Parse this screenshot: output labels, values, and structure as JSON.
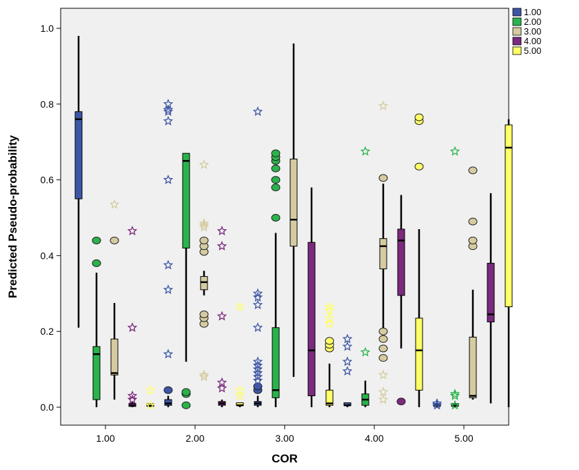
{
  "chart_data": {
    "type": "boxplot",
    "title": "",
    "xlabel": "COR",
    "ylabel": "Predicted Pseudo-probability",
    "categories": [
      "1.00",
      "2.00",
      "3.00",
      "4.00",
      "5.00"
    ],
    "y_ticks": [
      "0.0",
      "0.2",
      "0.4",
      "0.6",
      "0.8",
      "1.0"
    ],
    "ylim": [
      -0.05,
      1.05
    ],
    "grid": false,
    "legend_position": "top-right",
    "series": [
      {
        "name": "1.00",
        "color": "#3d56a6",
        "boxes": [
          {
            "min": 0.21,
            "q1": 0.55,
            "median": 0.76,
            "q3": 0.78,
            "max": 0.98,
            "outliers": [],
            "extremes": []
          },
          {
            "min": 0.0,
            "q1": 0.005,
            "median": 0.01,
            "q3": 0.02,
            "max": 0.03,
            "outliers": [
              0.045
            ],
            "extremes": [
              0.14,
              0.31,
              0.375,
              0.6,
              0.755,
              0.78,
              0.785,
              0.8
            ]
          },
          {
            "min": 0.0,
            "q1": 0.005,
            "median": 0.01,
            "q3": 0.015,
            "max": 0.03,
            "outliers": [
              0.045,
              0.055
            ],
            "extremes": [
              0.07,
              0.08,
              0.09,
              0.1,
              0.11,
              0.12,
              0.21,
              0.27,
              0.29,
              0.3,
              0.78
            ]
          },
          {
            "min": 0.0,
            "q1": 0.003,
            "median": 0.005,
            "q3": 0.008,
            "max": 0.01,
            "outliers": [],
            "extremes": [
              0.095,
              0.12,
              0.16,
              0.18
            ]
          },
          {
            "min": 0.0,
            "q1": 0.002,
            "median": 0.004,
            "q3": 0.006,
            "max": 0.01,
            "outliers": [],
            "extremes": [
              0.005,
              0.01
            ]
          }
        ]
      },
      {
        "name": "2.00",
        "color": "#2bb34b",
        "boxes": [
          {
            "min": 0.0,
            "q1": 0.02,
            "median": 0.14,
            "q3": 0.16,
            "max": 0.355,
            "outliers": [
              0.38,
              0.44
            ],
            "extremes": []
          },
          {
            "min": 0.12,
            "q1": 0.42,
            "median": 0.65,
            "q3": 0.67,
            "max": 0.67,
            "outliers": [
              0.005,
              0.035,
              0.04
            ],
            "extremes": []
          },
          {
            "min": 0.0,
            "q1": 0.025,
            "median": 0.045,
            "q3": 0.21,
            "max": 0.46,
            "outliers": [
              0.5,
              0.58,
              0.6,
              0.63,
              0.65,
              0.66,
              0.67
            ],
            "extremes": []
          },
          {
            "min": 0.0,
            "q1": 0.005,
            "median": 0.02,
            "q3": 0.035,
            "max": 0.07,
            "outliers": [],
            "extremes": [
              0.145,
              0.675
            ]
          },
          {
            "min": 0.0,
            "q1": 0.002,
            "median": 0.004,
            "q3": 0.006,
            "max": 0.01,
            "outliers": [],
            "extremes": [
              0.005,
              0.03,
              0.035,
              0.675
            ]
          }
        ]
      },
      {
        "name": "3.00",
        "color": "#d6cba0",
        "boxes": [
          {
            "min": 0.02,
            "q1": 0.085,
            "median": 0.09,
            "q3": 0.18,
            "max": 0.275,
            "outliers": [
              0.44
            ],
            "extremes": [
              0.535
            ]
          },
          {
            "min": 0.295,
            "q1": 0.31,
            "median": 0.33,
            "q3": 0.345,
            "max": 0.36,
            "outliers": [
              0.22,
              0.235,
              0.245,
              0.41,
              0.425,
              0.44
            ],
            "extremes": [
              0.08,
              0.085,
              0.475,
              0.48,
              0.485,
              0.64
            ]
          },
          {
            "min": 0.08,
            "q1": 0.425,
            "median": 0.495,
            "q3": 0.655,
            "max": 0.96,
            "outliers": [],
            "extremes": []
          },
          {
            "min": 0.2,
            "q1": 0.365,
            "median": 0.425,
            "q3": 0.445,
            "max": 0.59,
            "outliers": [
              0.13,
              0.155,
              0.18,
              0.2,
              0.605
            ],
            "extremes": [
              0.02,
              0.04,
              0.085,
              0.795
            ]
          },
          {
            "min": 0.02,
            "q1": 0.025,
            "median": 0.03,
            "q3": 0.185,
            "max": 0.31,
            "outliers": [
              0.425,
              0.44,
              0.49,
              0.625
            ],
            "extremes": []
          }
        ]
      },
      {
        "name": "4.00",
        "color": "#7b2a7e",
        "boxes": [
          {
            "min": 0.0,
            "q1": 0.002,
            "median": 0.005,
            "q3": 0.01,
            "max": 0.015,
            "outliers": [],
            "extremes": [
              0.02,
              0.03,
              0.21,
              0.465
            ]
          },
          {
            "min": 0.0,
            "q1": 0.005,
            "median": 0.01,
            "q3": 0.015,
            "max": 0.02,
            "outliers": [],
            "extremes": [
              0.05,
              0.065,
              0.24,
              0.425,
              0.465
            ]
          },
          {
            "min": 0.0,
            "q1": 0.03,
            "median": 0.15,
            "q3": 0.435,
            "max": 0.58,
            "outliers": [],
            "extremes": []
          },
          {
            "min": 0.155,
            "q1": 0.295,
            "median": 0.44,
            "q3": 0.47,
            "max": 0.56,
            "outliers": [
              0.015
            ],
            "extremes": []
          },
          {
            "min": 0.01,
            "q1": 0.225,
            "median": 0.245,
            "q3": 0.38,
            "max": 0.565,
            "outliers": [],
            "extremes": []
          }
        ]
      },
      {
        "name": "5.00",
        "color": "#ffff66",
        "boxes": [
          {
            "min": 0.0,
            "q1": 0.002,
            "median": 0.004,
            "q3": 0.006,
            "max": 0.01,
            "outliers": [],
            "extremes": [
              0.005,
              0.045
            ]
          },
          {
            "min": 0.0,
            "q1": 0.003,
            "median": 0.005,
            "q3": 0.008,
            "max": 0.01,
            "outliers": [],
            "extremes": [
              0.03,
              0.045,
              0.265
            ]
          },
          {
            "min": 0.0,
            "q1": 0.005,
            "median": 0.01,
            "q3": 0.045,
            "max": 0.115,
            "outliers": [
              0.155,
              0.165,
              0.175
            ],
            "extremes": [
              0.22,
              0.235,
              0.255,
              0.265
            ]
          },
          {
            "min": 0.0,
            "q1": 0.045,
            "median": 0.15,
            "q3": 0.235,
            "max": 0.47,
            "outliers": [
              0.635,
              0.755,
              0.765
            ],
            "extremes": []
          },
          {
            "min": 0.0,
            "q1": 0.265,
            "median": 0.685,
            "q3": 0.745,
            "max": 0.76,
            "outliers": [],
            "extremes": []
          }
        ]
      }
    ]
  }
}
